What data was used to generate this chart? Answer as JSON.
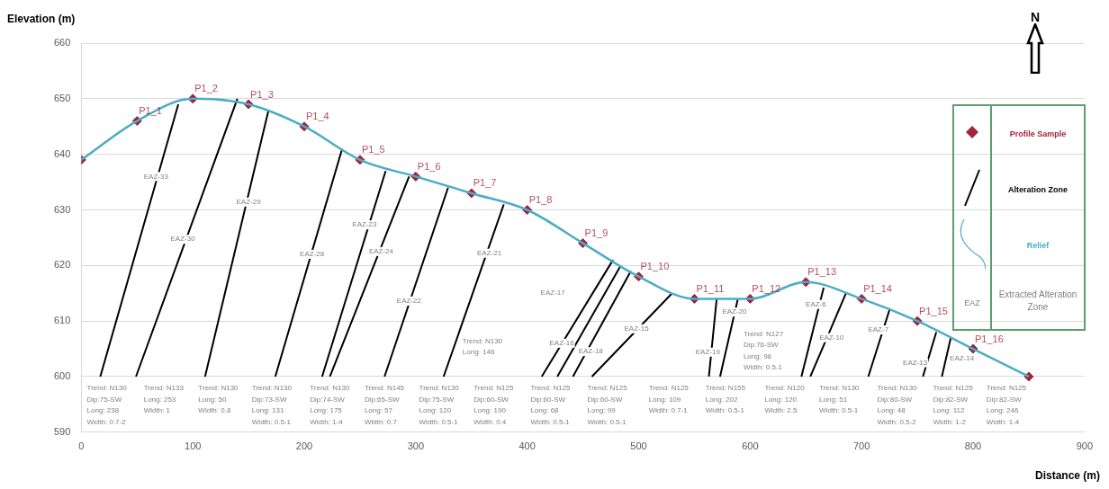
{
  "chart_data": {
    "type": "line",
    "xlabel": "Distance (m)",
    "ylabel": "Elevation (m)",
    "xlim": [
      0,
      900
    ],
    "xticks": [
      0,
      100,
      200,
      300,
      400,
      500,
      600,
      700,
      800,
      900
    ],
    "ylim": [
      590,
      660
    ],
    "yticks": [
      590,
      600,
      610,
      620,
      630,
      640,
      650,
      660
    ],
    "grid": "y",
    "legend": "right",
    "series": [
      {
        "name": "Relief",
        "type": "line",
        "color": "#4bacc6",
        "x": [
          0,
          50,
          100,
          150,
          200,
          250,
          300,
          350,
          400,
          450,
          500,
          550,
          600,
          650,
          700,
          750,
          800,
          850
        ],
        "values": [
          639,
          646,
          650,
          649,
          645,
          639,
          636,
          633,
          630,
          624,
          618,
          614,
          614,
          617,
          614,
          610,
          605,
          600
        ]
      },
      {
        "name": "Alteration Zone",
        "type": "line",
        "color": "#000000",
        "x": [
          17,
          87,
          null,
          49,
          140,
          null,
          111,
          168,
          null,
          174,
          234,
          null,
          216,
          273,
          null,
          223,
          294,
          null,
          272,
          329,
          null,
          325,
          379,
          null,
          413,
          477,
          null,
          427,
          484,
          null,
          441,
          493,
          null,
          458,
          530,
          null,
          563,
          570,
          null,
          573,
          589,
          null,
          646,
          666,
          null,
          654,
          686,
          null,
          706,
          725,
          null,
          755,
          767,
          null,
          772,
          780
        ],
        "values": [
          600,
          649,
          null,
          600,
          650,
          null,
          600,
          648,
          null,
          600,
          641,
          null,
          600,
          637,
          null,
          600,
          636,
          null,
          600,
          634,
          null,
          600,
          631,
          null,
          600,
          621,
          null,
          600,
          620,
          null,
          600,
          619,
          null,
          600,
          615,
          null,
          600,
          614,
          null,
          600,
          614,
          null,
          600,
          616,
          null,
          600,
          615,
          null,
          600,
          612,
          null,
          600,
          608,
          null,
          600,
          607
        ]
      },
      {
        "name": "Profile Sample",
        "type": "scatter",
        "marker": "diamond",
        "color": "#a0243a",
        "x": [
          0,
          50,
          100,
          150,
          200,
          250,
          300,
          350,
          400,
          450,
          500,
          550,
          600,
          650,
          700,
          750,
          800,
          850
        ],
        "values": [
          639,
          646,
          650,
          649,
          645,
          639,
          636,
          633,
          630,
          624,
          618,
          614,
          614,
          617,
          614,
          610,
          605,
          600
        ],
        "value_labels": [
          null,
          "P1_1",
          "P1_2",
          "P1_3",
          "P1_4",
          "P1_5",
          "P1_6",
          "P1_7",
          "P1_8",
          "P1_9",
          "P1_10",
          "P1_11",
          "P1_12",
          "P1_13",
          "P1_14",
          "P1_15",
          "P1_16",
          null
        ]
      }
    ],
    "annotations": [
      "EAZ",
      "Extracted Alteration Zone",
      "N",
      "EAZ-17",
      "EAZ-13",
      "EAZ-14",
      "Trend: N130\nDip:75-SW\nLong: 238\nWidth: 0.7-2",
      "Trend: N133\nLong: 253\nWidth: 1",
      "Trend: N130\nLong: 50\nWidth: 0.8",
      "Trend: N130\nDip:73-SW\nLong: 131\nWidth: 0.5-1",
      "Trend: N130\nDip:74-SW\nLong: 175\nWidth: 1-4",
      "Trend: N145\nDip:65-SW\nLong: 57\nWidth: 0.7",
      "Trend: N130\nDip:75-SW\nLong: 120\nWidth: 0.5-1",
      "Trend: N125\nDip:60-SW\nLong: 190\nWidth: 0.4",
      "Trend: N125\nDip:60-SW\nLong: 68\nWidth: 0.5-1",
      "Trend: N125\nDip:60-SW\nLong: 99\nWidth: 0.5-1",
      "Trend: N125\nLong: 109\nWidth: 0.7-1",
      "Trend: N155\nLong: 202\nWidth: 0.5-1",
      "Trend: N120\nLong: 120\nWidth: 2.5",
      "Trend: N130\nLong: 51\nWidth: 0.5-1",
      "Trend: N130\nDip:80-SW\nLong: 48\nWidth: 0.5-2",
      "Trend: N125\nDip:82-SW\nLong: 112\nWidth: 1-2",
      "Trend: N125\nDip:82-SW\nLong: 246\nWidth: 1-4",
      "Trend: N130\nLong: 146",
      "Trend: N127\nDip:76-SW\nLong: 98\nWidth: 0.5-1",
      {
        "text": "EAZ-33",
        "x": 67,
        "y": 636
      },
      {
        "text": "EAZ-30",
        "x": 91,
        "y": 624.7
      },
      {
        "text": "EAZ-29",
        "x": 150,
        "y": 631.4
      },
      {
        "text": "EAZ-28",
        "x": 207,
        "y": 622
      },
      {
        "text": "EAZ-23",
        "x": 254,
        "y": 627.3
      },
      {
        "text": "EAZ-24",
        "x": 269,
        "y": 622.5
      },
      {
        "text": "EAZ-22",
        "x": 294,
        "y": 613.6
      },
      {
        "text": "EAZ-21",
        "x": 366,
        "y": 622.2
      },
      {
        "text": "EAZ-16",
        "x": 431,
        "y": 606
      },
      {
        "text": "EAZ-18",
        "x": 457,
        "y": 604.5
      },
      {
        "text": "EAZ-15",
        "x": 498,
        "y": 608.6
      },
      {
        "text": "EAZ-19",
        "x": 562,
        "y": 604.4
      },
      {
        "text": "EAZ-20",
        "x": 586,
        "y": 611.6
      },
      {
        "text": "EAZ-6",
        "x": 659,
        "y": 613
      },
      {
        "text": "EAZ-10",
        "x": 673,
        "y": 607
      },
      {
        "text": "EAZ-7",
        "x": 715,
        "y": 608.4
      }
    ]
  }
}
